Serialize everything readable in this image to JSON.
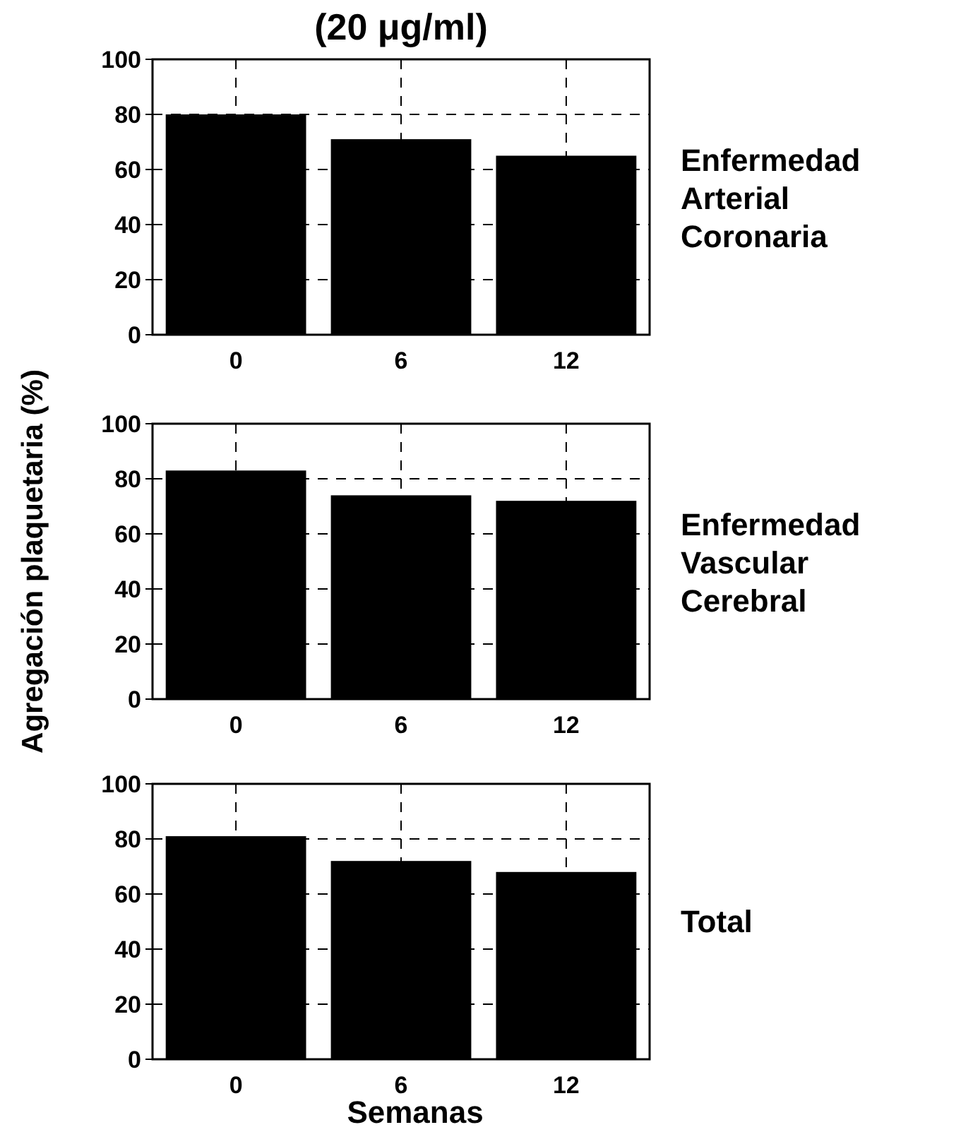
{
  "chart_data": [
    {
      "type": "bar",
      "title": "(20 μg/ml)",
      "annotations": [
        "Enfermedad Arterial Coronaria"
      ],
      "categories": [
        "0",
        "6",
        "12"
      ],
      "values": [
        80,
        71,
        65
      ],
      "color": "#000000",
      "ylim": [
        0,
        100
      ],
      "yticks": [
        0,
        20,
        40,
        60,
        80,
        100
      ],
      "grid": true
    },
    {
      "type": "bar",
      "annotations": [
        "Enfermedad Vascular Cerebral"
      ],
      "ylabel": "Agregación  plaquetaria (%)",
      "categories": [
        "0",
        "6",
        "12"
      ],
      "values": [
        83,
        74,
        72
      ],
      "color": "#000000",
      "ylim": [
        0,
        100
      ],
      "yticks": [
        0,
        20,
        40,
        60,
        80,
        100
      ],
      "grid": true
    },
    {
      "type": "bar",
      "annotations": [
        "Total"
      ],
      "xlabel": "Semanas",
      "categories": [
        "0",
        "6",
        "12"
      ],
      "values": [
        81,
        72,
        68
      ],
      "color": "#000000",
      "ylim": [
        0,
        100
      ],
      "yticks": [
        0,
        20,
        40,
        60,
        80,
        100
      ],
      "grid": true
    }
  ]
}
